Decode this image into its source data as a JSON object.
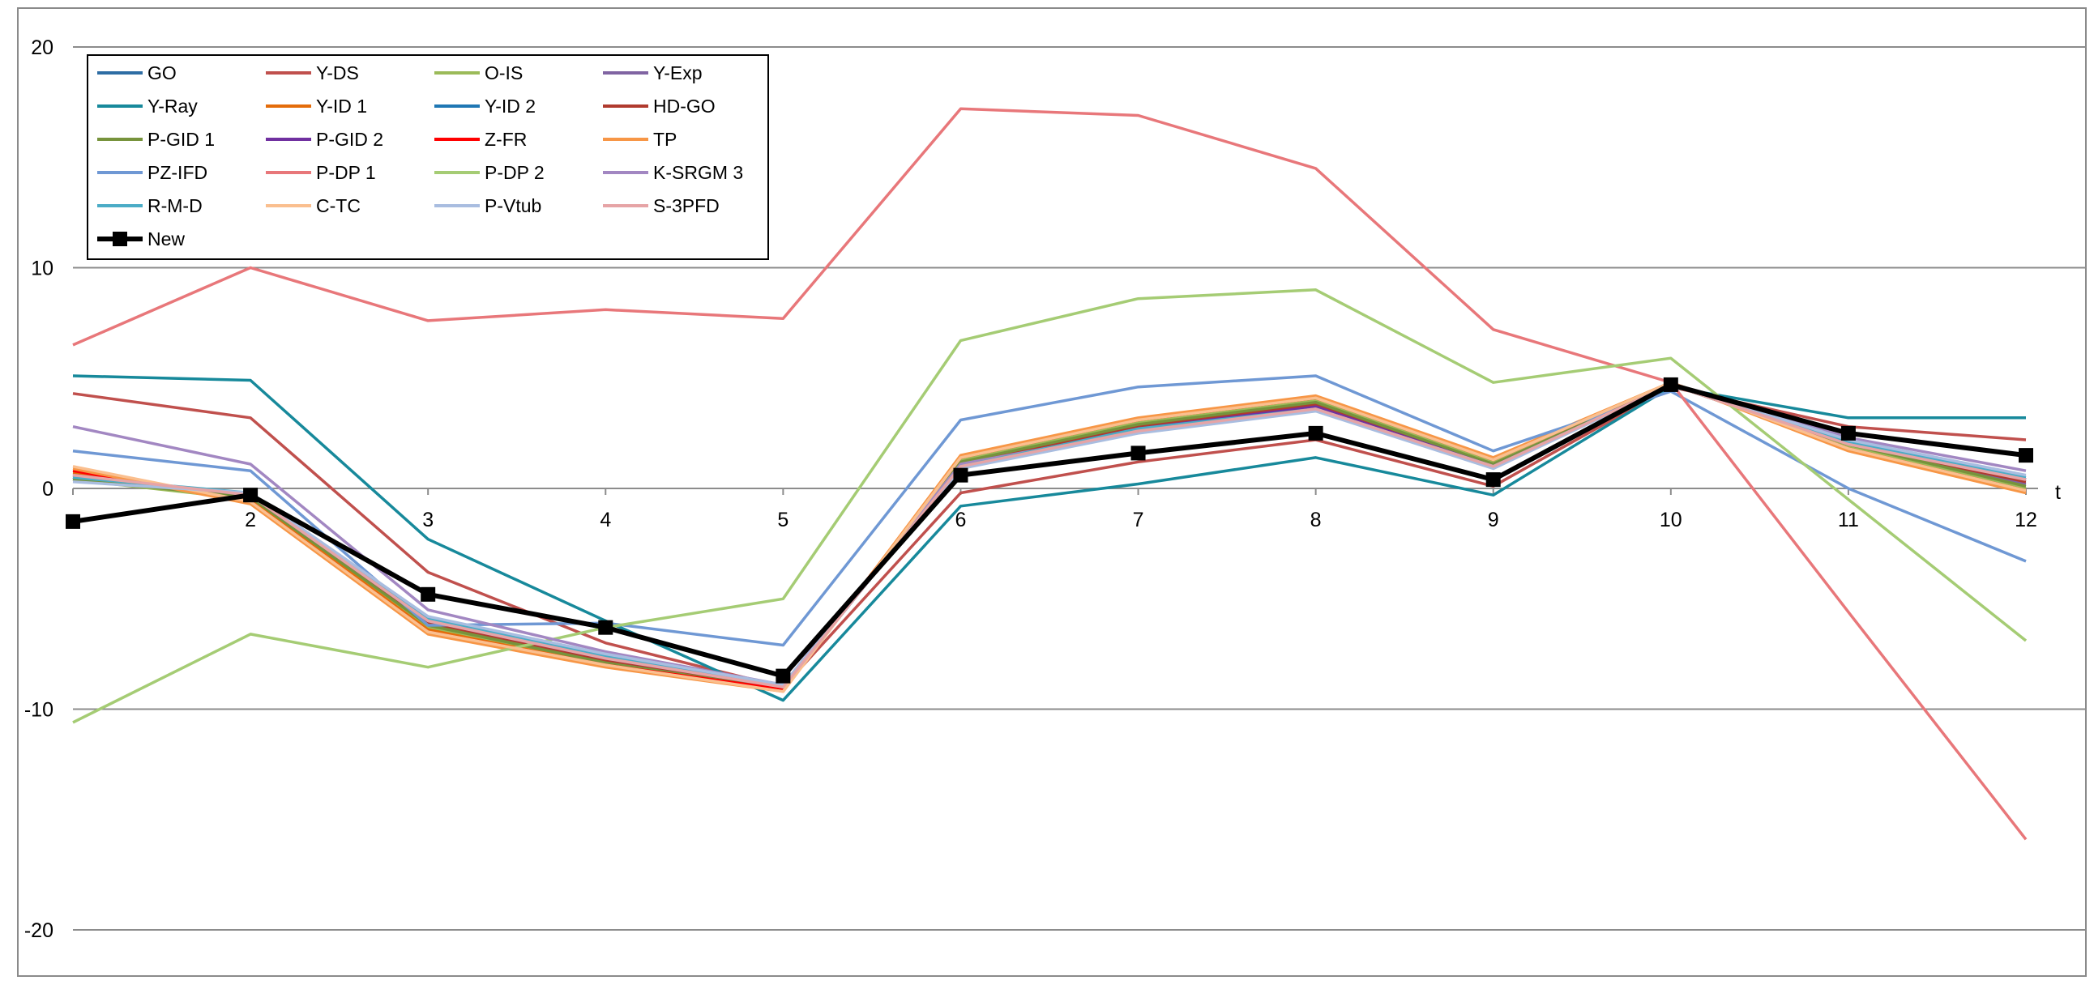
{
  "chart_data": {
    "type": "line",
    "title": "",
    "xlabel": "t",
    "ylabel": "",
    "x": [
      1,
      2,
      3,
      4,
      5,
      6,
      7,
      8,
      9,
      10,
      11,
      12
    ],
    "xticks": [
      "2",
      "3",
      "4",
      "5",
      "6",
      "7",
      "8",
      "9",
      "10",
      "11",
      "12"
    ],
    "yticks": [
      "20",
      "10",
      "0",
      "-10",
      "-20"
    ],
    "ylim": [
      -20,
      20
    ],
    "grid": true,
    "legend_position": "top-left",
    "series": [
      {
        "name": "GO",
        "color": "#2e6da4",
        "values": [
          0.6,
          -0.3,
          -6.0,
          -7.7,
          -9.0,
          1.0,
          2.6,
          3.6,
          1.0,
          4.7,
          2.0,
          0.4
        ]
      },
      {
        "name": "Y-DS",
        "color": "#c0504d",
        "values": [
          4.3,
          3.2,
          -3.8,
          -7.0,
          -9.0,
          -0.2,
          1.2,
          2.2,
          0.1,
          4.6,
          2.8,
          2.2
        ]
      },
      {
        "name": "O-IS",
        "color": "#9bbb59",
        "values": [
          0.4,
          -0.5,
          -6.3,
          -7.9,
          -9.1,
          1.3,
          3.0,
          4.0,
          1.2,
          4.8,
          1.9,
          0.0
        ]
      },
      {
        "name": "Y-Exp",
        "color": "#8064a2",
        "values": [
          0.5,
          -0.4,
          -6.1,
          -7.8,
          -9.0,
          1.1,
          2.8,
          3.8,
          1.1,
          4.7,
          2.0,
          0.2
        ]
      },
      {
        "name": "Y-Ray",
        "color": "#17899b",
        "values": [
          5.1,
          4.9,
          -2.3,
          -6.0,
          -9.6,
          -0.8,
          0.2,
          1.4,
          -0.3,
          4.6,
          3.2,
          3.2
        ]
      },
      {
        "name": "Y-ID 1",
        "color": "#e46c0a",
        "values": [
          0.7,
          -0.5,
          -6.4,
          -8.0,
          -9.1,
          1.4,
          3.1,
          4.1,
          1.3,
          4.8,
          1.8,
          -0.1
        ]
      },
      {
        "name": "Y-ID 2",
        "color": "#1f77b4",
        "values": [
          0.5,
          -0.3,
          -6.0,
          -7.7,
          -9.0,
          1.0,
          2.7,
          3.7,
          1.0,
          4.7,
          2.0,
          0.4
        ]
      },
      {
        "name": "HD-GO",
        "color": "#b03a2e",
        "values": [
          0.5,
          -0.4,
          -6.1,
          -7.8,
          -9.0,
          1.1,
          2.8,
          3.8,
          1.1,
          4.7,
          2.0,
          0.3
        ]
      },
      {
        "name": "P-GID 1",
        "color": "#77933c",
        "values": [
          0.4,
          -0.4,
          -6.2,
          -7.9,
          -9.1,
          1.2,
          2.9,
          3.9,
          1.1,
          4.7,
          2.0,
          0.1
        ]
      },
      {
        "name": "P-GID 2",
        "color": "#7030a0",
        "values": [
          0.6,
          -0.3,
          -6.0,
          -7.7,
          -9.0,
          1.0,
          2.7,
          3.7,
          1.0,
          4.7,
          2.1,
          0.4
        ]
      },
      {
        "name": "Z-FR",
        "color": "#ff0000",
        "values": [
          0.8,
          -0.6,
          -6.5,
          -8.0,
          -9.1,
          1.4,
          3.1,
          4.1,
          1.3,
          4.8,
          1.8,
          -0.1
        ]
      },
      {
        "name": "TP",
        "color": "#f79646",
        "values": [
          0.9,
          -0.7,
          -6.6,
          -8.1,
          -9.2,
          1.5,
          3.2,
          4.2,
          1.4,
          4.8,
          1.7,
          -0.2
        ]
      },
      {
        "name": "PZ-IFD",
        "color": "#6f98d4",
        "values": [
          1.7,
          0.8,
          -6.2,
          -6.1,
          -7.1,
          3.1,
          4.6,
          5.1,
          1.7,
          4.4,
          0.0,
          -3.3
        ]
      },
      {
        "name": "P-DP 1",
        "color": "#e8777a",
        "values": [
          6.5,
          10.0,
          7.6,
          8.1,
          7.7,
          17.2,
          16.9,
          14.5,
          7.2,
          4.8,
          -5.6,
          -15.9
        ]
      },
      {
        "name": "P-DP 2",
        "color": "#a5cc74",
        "values": [
          -10.6,
          -6.6,
          -8.1,
          -6.3,
          -5.0,
          6.7,
          8.6,
          9.0,
          4.8,
          5.9,
          -0.5,
          -6.9
        ]
      },
      {
        "name": "K-SRGM 3",
        "color": "#a287c2",
        "values": [
          2.8,
          1.1,
          -5.5,
          -7.4,
          -8.9,
          1.1,
          2.6,
          3.6,
          1.0,
          4.7,
          2.3,
          0.8
        ]
      },
      {
        "name": "R-M-D",
        "color": "#4bacc6",
        "values": [
          0.5,
          -0.2,
          -5.9,
          -7.6,
          -9.0,
          1.0,
          2.7,
          3.6,
          1.0,
          4.7,
          2.1,
          0.5
        ]
      },
      {
        "name": "C-TC",
        "color": "#fabf8f",
        "values": [
          1.0,
          -0.6,
          -6.5,
          -8.0,
          -9.2,
          1.4,
          3.1,
          4.1,
          1.3,
          4.8,
          1.8,
          -0.1
        ]
      },
      {
        "name": "P-Vtub",
        "color": "#a9bde0",
        "values": [
          0.3,
          -0.2,
          -5.8,
          -7.5,
          -8.9,
          0.9,
          2.5,
          3.5,
          0.9,
          4.7,
          2.2,
          0.6
        ]
      },
      {
        "name": "S-3PFD",
        "color": "#e6a4a6",
        "values": [
          0.6,
          -0.3,
          -6.0,
          -7.7,
          -9.0,
          1.0,
          2.6,
          3.6,
          1.0,
          4.7,
          2.0,
          0.4
        ]
      },
      {
        "name": "New",
        "color": "#000000",
        "marker": "square",
        "values": [
          -1.5,
          -0.3,
          -4.8,
          -6.3,
          -8.5,
          0.6,
          1.6,
          2.5,
          0.4,
          4.7,
          2.5,
          1.5
        ]
      }
    ]
  }
}
